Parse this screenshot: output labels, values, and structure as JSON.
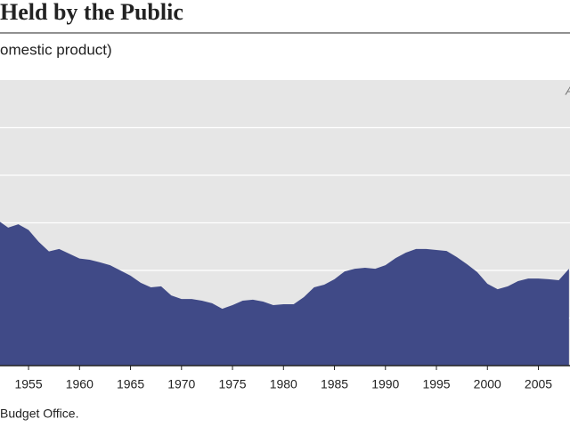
{
  "chart_data": {
    "type": "area",
    "title": "Held by the Public",
    "subtitle": "omestic product)",
    "annotation": "A",
    "source": "Budget Office.",
    "x": [
      1952,
      1953,
      1954,
      1955,
      1956,
      1957,
      1958,
      1959,
      1960,
      1961,
      1962,
      1963,
      1964,
      1965,
      1966,
      1967,
      1968,
      1969,
      1970,
      1971,
      1972,
      1973,
      1974,
      1975,
      1976,
      1977,
      1978,
      1979,
      1980,
      1981,
      1982,
      1983,
      1984,
      1985,
      1986,
      1987,
      1988,
      1989,
      1990,
      1991,
      1992,
      1993,
      1994,
      1995,
      1996,
      1997,
      1998,
      1999,
      2000,
      2001,
      2002,
      2003,
      2004,
      2005,
      2006,
      2007,
      2008
    ],
    "values": [
      61,
      58,
      59.4,
      57,
      52,
      48,
      49,
      47,
      45,
      44.5,
      43.4,
      42.2,
      40,
      37.8,
      34.8,
      32.9,
      33.3,
      29.5,
      28,
      28,
      27.3,
      26.2,
      23.9,
      25.4,
      27.3,
      27.7,
      26.9,
      25.4,
      25.8,
      25.8,
      28.8,
      32.9,
      34,
      36.3,
      39.6,
      40.7,
      41.1,
      40.7,
      42.2,
      45.2,
      47.5,
      49,
      49,
      48.6,
      48.2,
      45.6,
      42.6,
      39.3,
      34.4,
      32.1,
      33.3,
      35.5,
      36.6,
      36.6,
      36.3,
      35.9,
      40.7
    ],
    "color": "#404a87",
    "xlim": [
      1952.2,
      2008.1
    ],
    "xticks": [
      1955,
      1960,
      1965,
      1970,
      1975,
      1980,
      1985,
      1990,
      1995,
      2000,
      2005
    ],
    "ylim": [
      0,
      120
    ],
    "yticks": [
      20,
      40,
      60,
      80,
      100
    ],
    "grid": true
  }
}
